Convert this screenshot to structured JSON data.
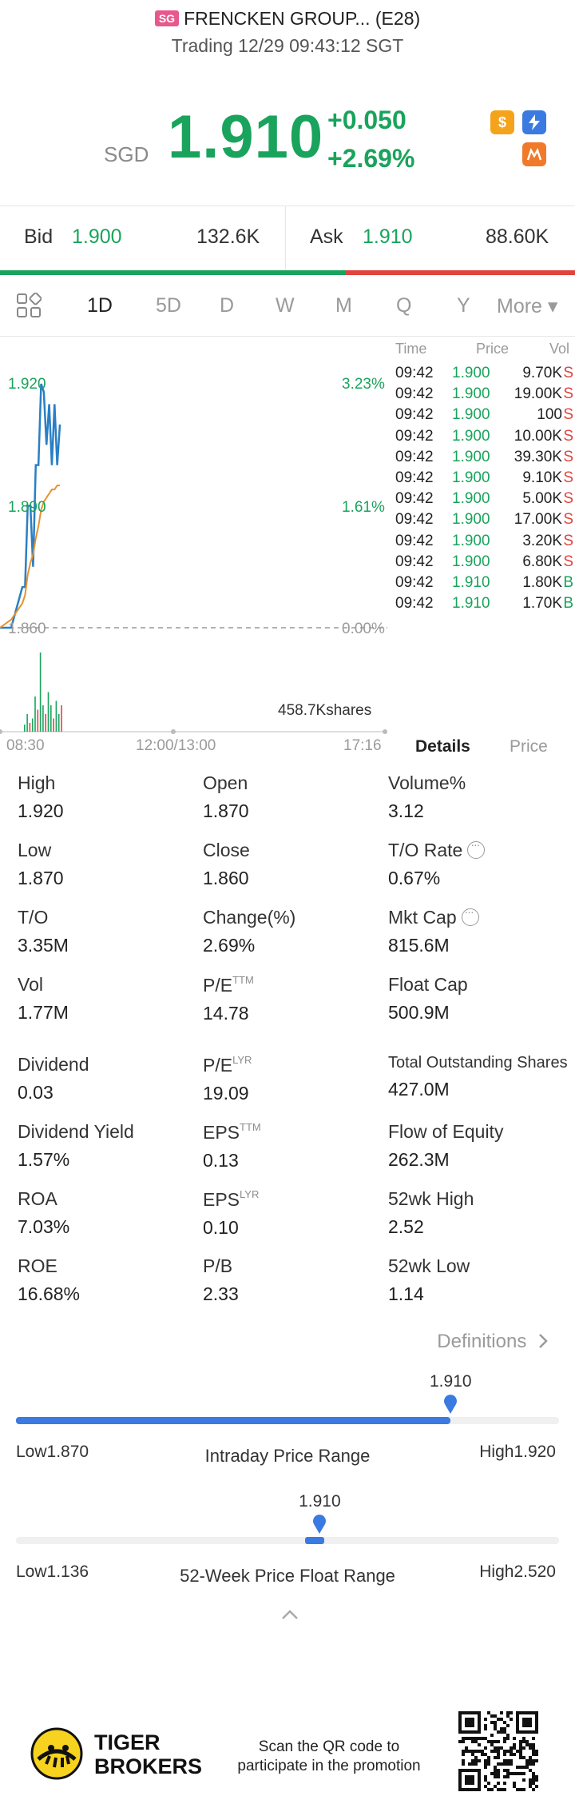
{
  "header": {
    "market_badge": "SG",
    "title": "FRENCKEN GROUP... (E28)",
    "subtitle": "Trading 12/29 09:43:12 SGT"
  },
  "quote": {
    "currency": "SGD",
    "price": "1.910",
    "change": "+0.050",
    "change_pct": "+2.69%",
    "icons": [
      "dollar-icon",
      "flash-icon",
      "orange-badge-icon"
    ]
  },
  "bid_ask": {
    "bid_label": "Bid",
    "bid_price": "1.900",
    "bid_volume": "132.6K",
    "ask_label": "Ask",
    "ask_price": "1.910",
    "ask_volume": "88.60K",
    "bid_ratio": 0.6
  },
  "tabs": [
    {
      "label": "1D",
      "active": true
    },
    {
      "label": "5D",
      "active": false
    },
    {
      "label": "D",
      "active": false
    },
    {
      "label": "W",
      "active": false
    },
    {
      "label": "M",
      "active": false
    },
    {
      "label": "Q",
      "active": false
    },
    {
      "label": "Y",
      "active": false
    },
    {
      "label": "More ▾",
      "active": false
    }
  ],
  "chart_data": {
    "type": "line",
    "y_labels_left": [
      "1.920",
      "1.890",
      "1.860"
    ],
    "y_labels_right": [
      "3.23%",
      "1.61%",
      "0.00%"
    ],
    "x_labels": [
      "08:30",
      "12:00/13:00",
      "17:16"
    ],
    "volume_label": "458.7Kshares",
    "ylim": [
      1.86,
      1.92
    ],
    "prev_close": 1.86,
    "series": [
      {
        "values": [
          1.86,
          1.86,
          1.87,
          1.87,
          1.89,
          1.89,
          1.875,
          1.9,
          1.9,
          1.92,
          1.918,
          1.905,
          1.915,
          1.9,
          1.915,
          1.9,
          1.91
        ]
      },
      {
        "values": [
          1.86,
          1.862,
          1.866,
          1.868,
          1.873,
          1.876,
          1.878,
          1.882,
          1.885,
          1.889,
          1.891,
          1.892,
          1.893,
          1.894,
          1.894,
          1.895,
          1.895
        ]
      }
    ],
    "volume": [
      0.08,
      0.2,
      0.1,
      0.15,
      0.4,
      0.25,
      0.9,
      0.3,
      0.2,
      0.45,
      0.3,
      0.15,
      0.35,
      0.2,
      0.3
    ]
  },
  "trades": {
    "headers": [
      "Time",
      "Price",
      "Vol"
    ],
    "rows": [
      {
        "time": "09:42",
        "price": "1.900",
        "vol": "9.70K",
        "side": "S"
      },
      {
        "time": "09:42",
        "price": "1.900",
        "vol": "19.00K",
        "side": "S"
      },
      {
        "time": "09:42",
        "price": "1.900",
        "vol": "100",
        "side": "S"
      },
      {
        "time": "09:42",
        "price": "1.900",
        "vol": "10.00K",
        "side": "S"
      },
      {
        "time": "09:42",
        "price": "1.900",
        "vol": "39.30K",
        "side": "S"
      },
      {
        "time": "09:42",
        "price": "1.900",
        "vol": "9.10K",
        "side": "S"
      },
      {
        "time": "09:42",
        "price": "1.900",
        "vol": "5.00K",
        "side": "S"
      },
      {
        "time": "09:42",
        "price": "1.900",
        "vol": "17.00K",
        "side": "S"
      },
      {
        "time": "09:42",
        "price": "1.900",
        "vol": "3.20K",
        "side": "S"
      },
      {
        "time": "09:42",
        "price": "1.900",
        "vol": "6.80K",
        "side": "S"
      },
      {
        "time": "09:42",
        "price": "1.910",
        "vol": "1.80K",
        "side": "B"
      },
      {
        "time": "09:42",
        "price": "1.910",
        "vol": "1.70K",
        "side": "B"
      }
    ],
    "detail_tabs": [
      "Details",
      "Price"
    ]
  },
  "stats": [
    {
      "label": "High",
      "value": "1.920"
    },
    {
      "label": "Open",
      "value": "1.870"
    },
    {
      "label": "Volume%",
      "value": "3.12"
    },
    {
      "label": "Low",
      "value": "1.870"
    },
    {
      "label": "Close",
      "value": "1.860"
    },
    {
      "label": "T/O Rate",
      "value": "0.67%",
      "info": true
    },
    {
      "label": "T/O",
      "value": "3.35M"
    },
    {
      "label": "Change(%)",
      "value": "2.69%"
    },
    {
      "label": "Mkt Cap",
      "value": "815.6M",
      "info": true
    },
    {
      "label": "Vol",
      "value": "1.77M"
    },
    {
      "label": "P/E",
      "sup": "TTM",
      "value": "14.78"
    },
    {
      "label": "Float Cap",
      "value": "500.9M"
    },
    {
      "label": "Dividend",
      "value": "0.03"
    },
    {
      "label": "P/E",
      "sup": "LYR",
      "value": "19.09"
    },
    {
      "label": "Total Outstanding Shares",
      "value": "427.0M"
    },
    {
      "label": "Dividend Yield",
      "value": "1.57%"
    },
    {
      "label": "EPS",
      "sup": "TTM",
      "value": "0.13"
    },
    {
      "label": "Flow of Equity",
      "value": "262.3M"
    },
    {
      "label": "ROA",
      "value": "7.03%"
    },
    {
      "label": "EPS",
      "sup": "LYR",
      "value": "0.10"
    },
    {
      "label": "52wk High",
      "value": "2.52"
    },
    {
      "label": "ROE",
      "value": "16.68%"
    },
    {
      "label": "P/B",
      "value": "2.33"
    },
    {
      "label": "52wk Low",
      "value": "1.14"
    }
  ],
  "definitions_label": "Definitions",
  "intraday": {
    "current": "1.910",
    "low_label": "Low1.870",
    "high_label": "High1.920",
    "title": "Intraday Price Range",
    "position": 0.8
  },
  "week52": {
    "current": "1.910",
    "low_label": "Low1.136",
    "high_label": "High2.520",
    "title": "52-Week Price Float Range",
    "position": 0.559
  },
  "footer": {
    "brand_line1": "TIGER",
    "brand_line2": "BROKERS",
    "promo_line1": "Scan the QR code to",
    "promo_line2": "participate in the promotion"
  }
}
